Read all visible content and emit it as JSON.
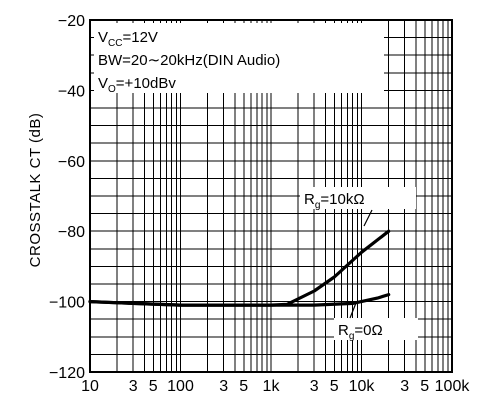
{
  "chart_data": {
    "type": "line",
    "xscale": "log",
    "xlim": [
      10,
      100000
    ],
    "ylim": [
      -120,
      -20
    ],
    "grid": true,
    "ylabel": "CROSSTALK  CT (dB)",
    "xlabel": "",
    "x_tick_labels": [
      "10",
      "3",
      "5",
      "100",
      "3",
      "5",
      "1k",
      "3",
      "5",
      "10k",
      "3",
      "5",
      "100k"
    ],
    "x_tick_values": [
      10,
      30,
      50,
      100,
      300,
      500,
      1000,
      3000,
      5000,
      10000,
      30000,
      50000,
      100000
    ],
    "y_ticks": [
      -20,
      -40,
      -60,
      -80,
      -100,
      -120
    ],
    "y_tick_labels": [
      "−20",
      "−40",
      "−60",
      "−80",
      "−100",
      "−120"
    ],
    "conditions": {
      "vcc": {
        "main": "V",
        "sub": "CC",
        "rest": "=12V"
      },
      "bw": "BW=20∼20kHz(DIN   Audio)",
      "vo": {
        "main": "V",
        "sub": "O",
        "rest": "=+10dBv"
      }
    },
    "series": [
      {
        "name": {
          "main": "R",
          "sub": "g",
          "rest": "=10kΩ"
        },
        "points": [
          [
            10,
            -100
          ],
          [
            30,
            -100.5
          ],
          [
            100,
            -101
          ],
          [
            1000,
            -101
          ],
          [
            1500,
            -100.8
          ],
          [
            3000,
            -97
          ],
          [
            5000,
            -93
          ],
          [
            10000,
            -86
          ],
          [
            20000,
            -80
          ]
        ]
      },
      {
        "name": {
          "main": "R",
          "sub": "g",
          "rest": "=0Ω"
        },
        "points": [
          [
            10,
            -100
          ],
          [
            30,
            -100.5
          ],
          [
            100,
            -101
          ],
          [
            1000,
            -101
          ],
          [
            3000,
            -101
          ],
          [
            8000,
            -100.5
          ],
          [
            15000,
            -99
          ],
          [
            20000,
            -98
          ]
        ]
      }
    ]
  }
}
